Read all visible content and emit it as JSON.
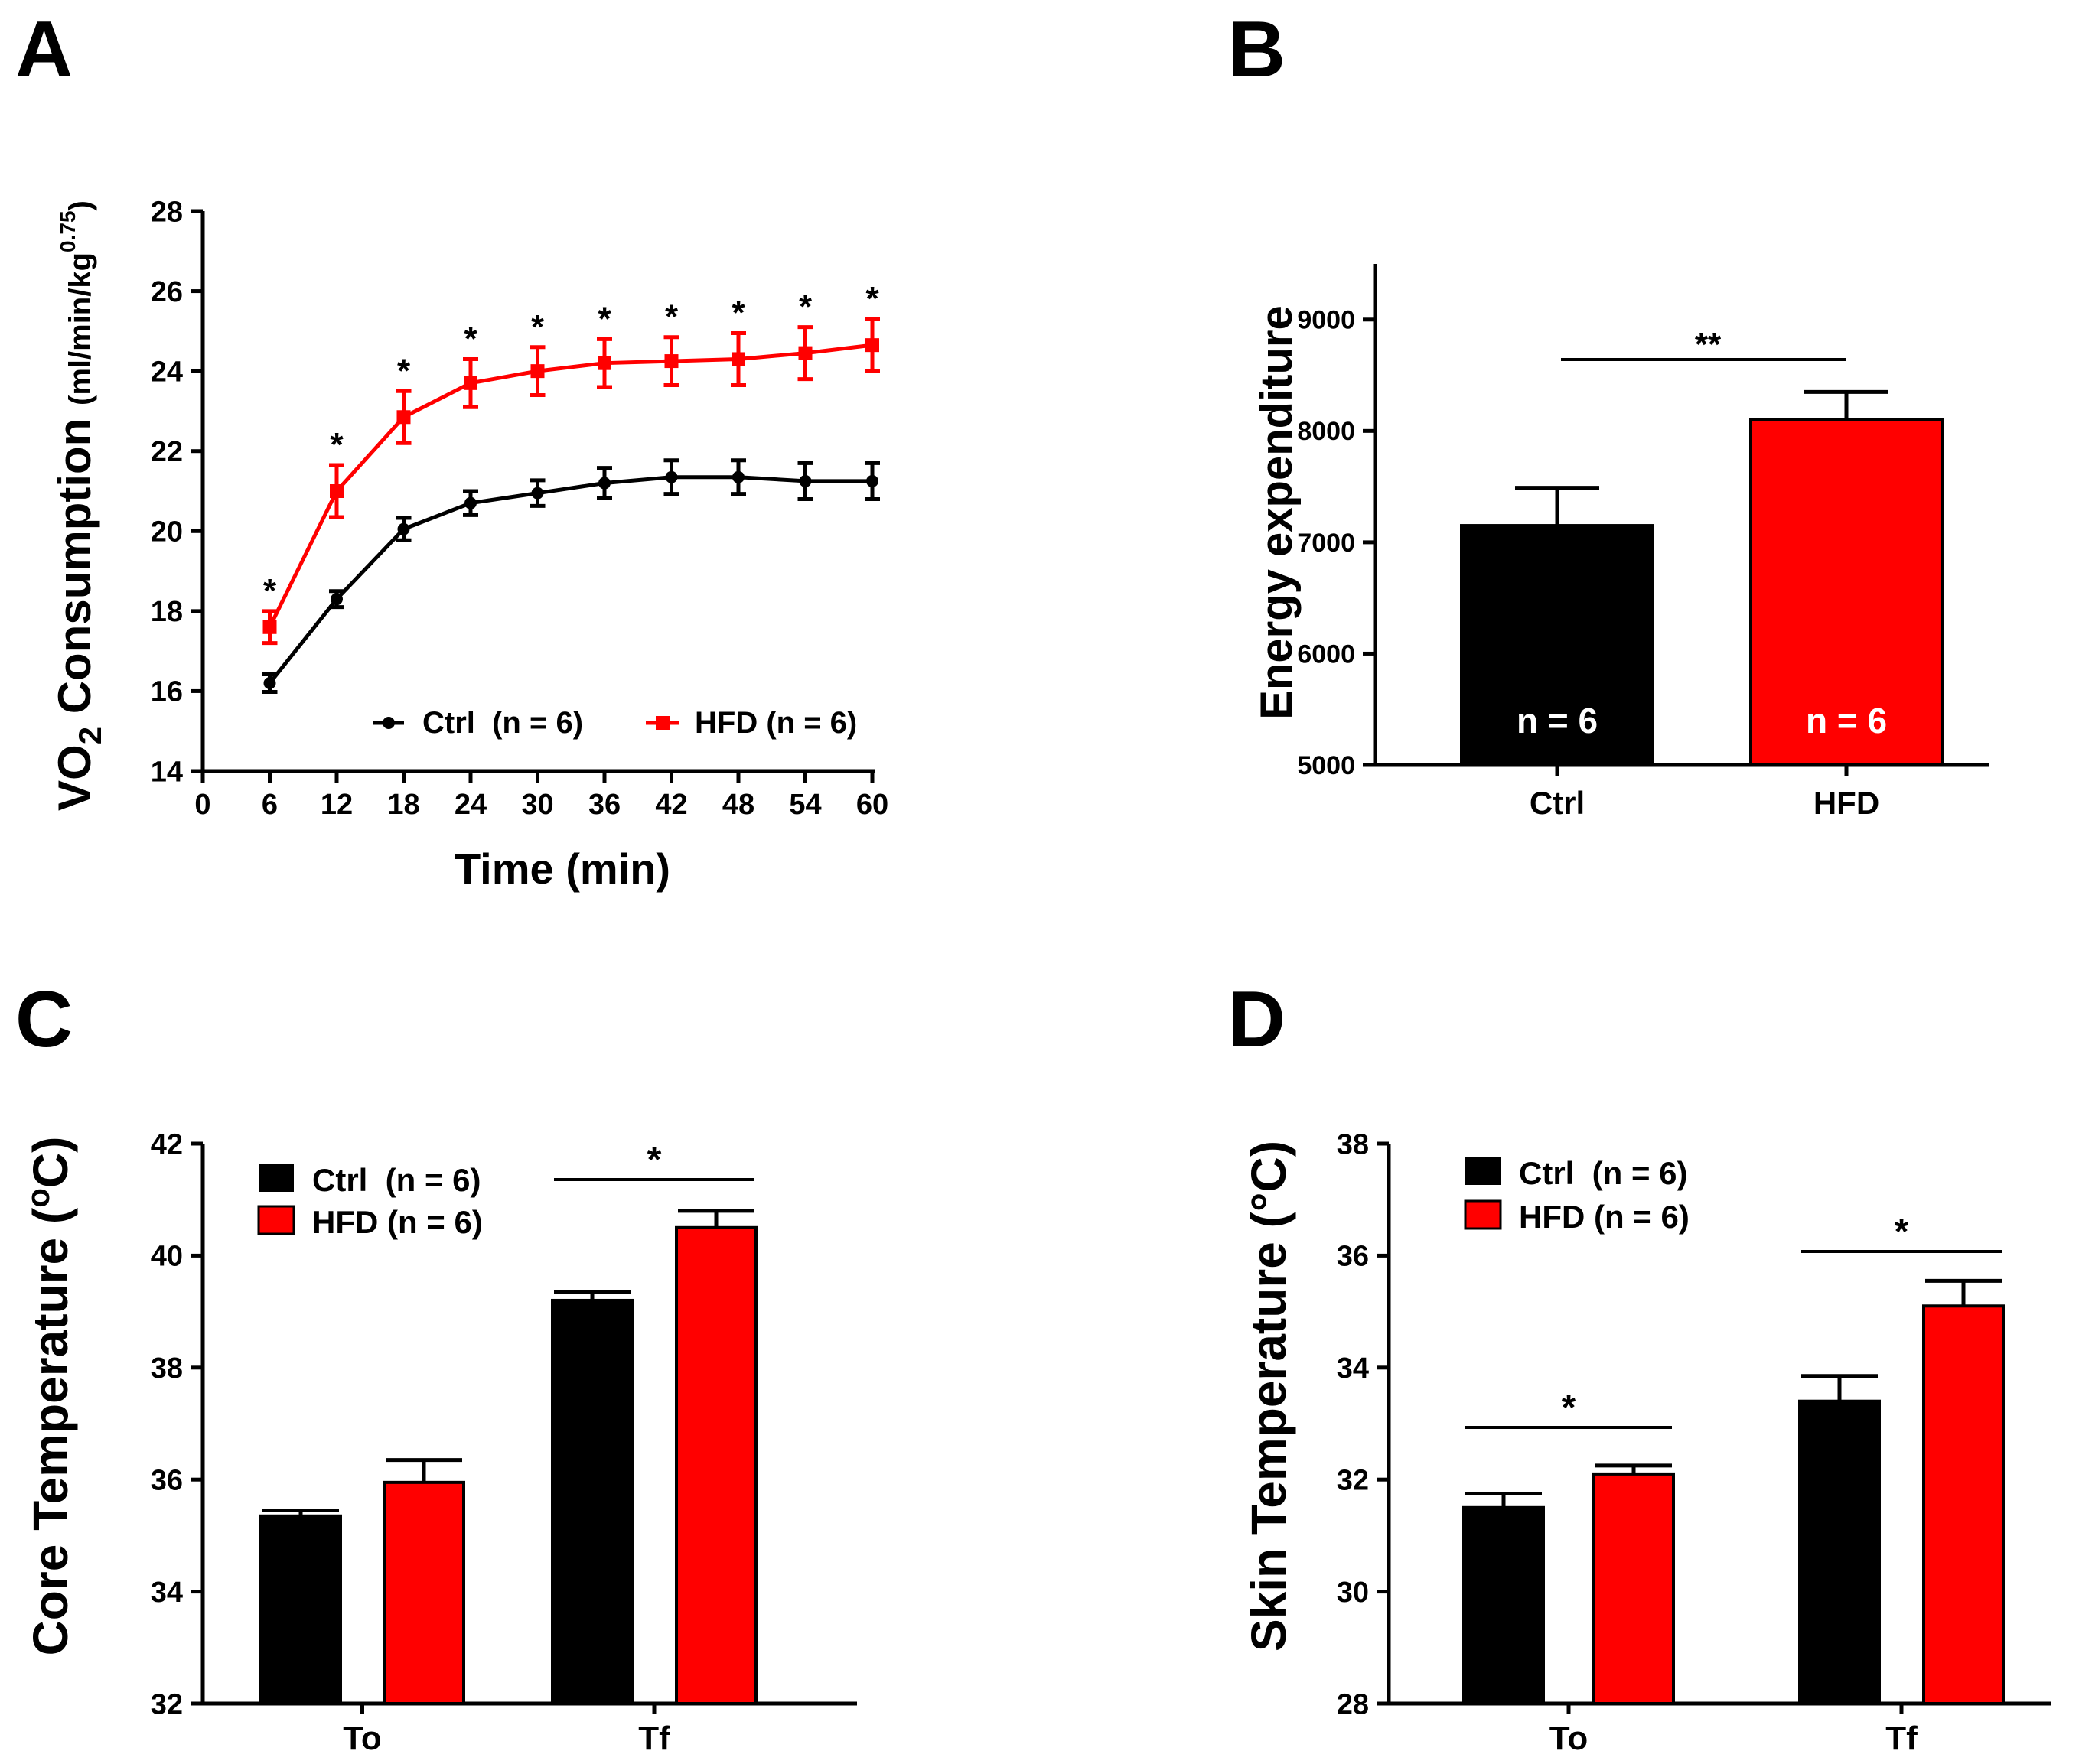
{
  "colors": {
    "ctrl": "#000000",
    "hfd": "#ff0000",
    "axis": "#000000"
  },
  "chart_data": [
    {
      "panel": "A",
      "type": "line",
      "xlabel": "Time (min)",
      "ylabel_main": "VO",
      "ylabel_sub": "2",
      "ylabel_rest": " Consumption ",
      "ylabel_units": "(ml/min/kg",
      "ylabel_units_sup": "0.75",
      "ylabel_units_close": ")",
      "xlim": [
        0,
        60
      ],
      "ylim": [
        14,
        28
      ],
      "xticks": [
        0,
        6,
        12,
        18,
        24,
        30,
        36,
        42,
        48,
        54,
        60
      ],
      "yticks": [
        14,
        16,
        18,
        20,
        22,
        24,
        26,
        28
      ],
      "x": [
        6,
        12,
        18,
        24,
        30,
        36,
        42,
        48,
        54,
        60
      ],
      "series": [
        {
          "name": "Ctrl  (n = 6)",
          "color": "#000000",
          "marker": "circle",
          "values": [
            16.2,
            18.3,
            20.05,
            20.7,
            20.95,
            21.2,
            21.35,
            21.35,
            21.25,
            21.25
          ],
          "errors": [
            0.22,
            0.2,
            0.28,
            0.3,
            0.32,
            0.38,
            0.42,
            0.42,
            0.45,
            0.45
          ]
        },
        {
          "name": "HFD (n = 6)",
          "color": "#ff0000",
          "marker": "square",
          "values": [
            17.6,
            21.0,
            22.85,
            23.7,
            24.0,
            24.2,
            24.25,
            24.3,
            24.45,
            24.65
          ],
          "errors": [
            0.4,
            0.65,
            0.65,
            0.6,
            0.6,
            0.6,
            0.6,
            0.65,
            0.65,
            0.65
          ]
        }
      ],
      "annotations": [
        "*",
        "*",
        "*",
        "*",
        "*",
        "*",
        "*",
        "*",
        "*",
        "*"
      ],
      "legend_position": "bottom-right"
    },
    {
      "panel": "B",
      "type": "bar",
      "ylabel": "Energy expenditure",
      "ylim": [
        5000,
        9500
      ],
      "yticks": [
        5000,
        6000,
        7000,
        8000,
        9000
      ],
      "categories": [
        "Ctrl",
        "HFD"
      ],
      "values": [
        7150,
        8100
      ],
      "errors": [
        340,
        250
      ],
      "bar_colors": [
        "#000000",
        "#ff0000"
      ],
      "bar_labels": [
        "n = 6",
        "n = 6"
      ],
      "significance": "**"
    },
    {
      "panel": "C",
      "type": "bar",
      "ylabel": "Core Temperature (",
      "ylabel_sup": "o",
      "ylabel_end": "C)",
      "ylim": [
        32,
        42
      ],
      "yticks": [
        32,
        34,
        36,
        38,
        40,
        42
      ],
      "categories": [
        "To",
        "Tf"
      ],
      "series": [
        {
          "name": "Ctrl  (n = 6)",
          "color": "#000000",
          "values": [
            35.35,
            39.2
          ],
          "errors": [
            0.1,
            0.15
          ]
        },
        {
          "name": "HFD (n = 6)",
          "color": "#ff0000",
          "values": [
            35.95,
            40.5
          ],
          "errors": [
            0.4,
            0.3
          ]
        }
      ],
      "significance": [
        "",
        "*"
      ],
      "legend_position": "top-left"
    },
    {
      "panel": "D",
      "type": "bar",
      "ylabel": "Skin Temperature (°C)",
      "ylim": [
        28,
        38
      ],
      "yticks": [
        28,
        30,
        32,
        34,
        36,
        38
      ],
      "categories": [
        "To",
        "Tf"
      ],
      "series": [
        {
          "name": "Ctrl  (n = 6)",
          "color": "#000000",
          "values": [
            31.5,
            33.4
          ],
          "errors": [
            0.25,
            0.45
          ]
        },
        {
          "name": "HFD (n = 6)",
          "color": "#ff0000",
          "values": [
            32.1,
            35.1
          ],
          "errors": [
            0.15,
            0.45
          ]
        }
      ],
      "significance": [
        "*",
        "*"
      ],
      "legend_position": "top-left"
    }
  ]
}
